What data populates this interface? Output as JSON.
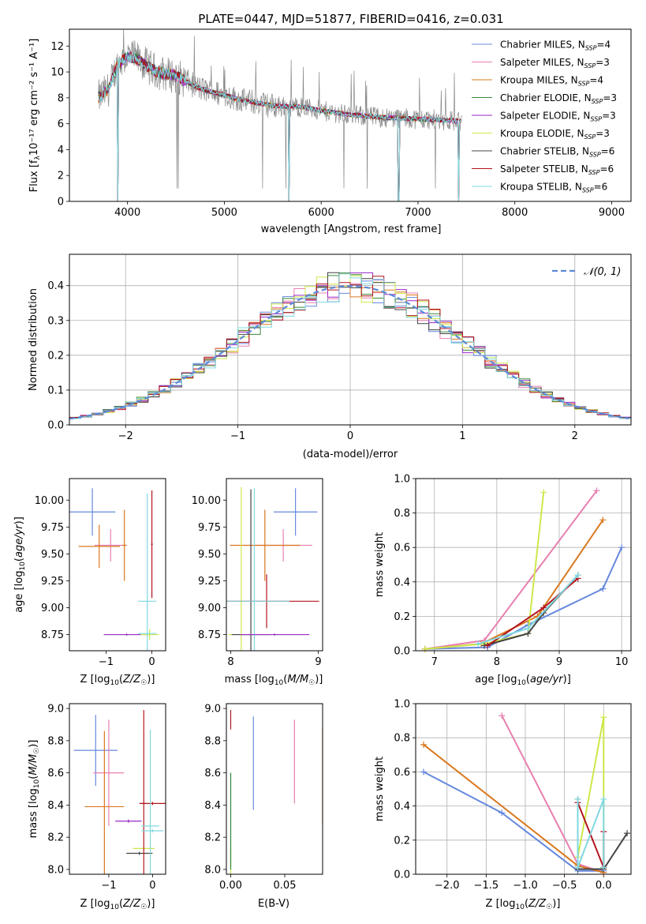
{
  "colors": {
    "Chabrier MILES": "#6688dd",
    "Salpeter MILES": "#e87fb0",
    "Kroupa MILES": "#d9781f",
    "Chabrier ELODIE": "#3a8a3a",
    "Salpeter ELODIE": "#9a28c8",
    "Kroupa ELODIE": "#cde84a",
    "Chabrier STELIB": "#444444",
    "Salpeter STELIB": "#b4141e",
    "Kroupa STELIB": "#80d8e0",
    "data": "#888888",
    "gauss": "#5c8ad6"
  },
  "chart_data": [
    {
      "id": "spectrum",
      "type": "line",
      "title": "PLATE=0447, MJD=51877, FIBERID=0416, z=0.031",
      "xlabel": "wavelength [Angstrom, rest frame]",
      "ylabel": "Flux [fλ10⁻¹⁷ erg cm⁻² s⁻¹ A⁻¹]",
      "xlim": [
        3400,
        9200
      ],
      "ylim": [
        0,
        13.3
      ],
      "xticks": [
        4000,
        5000,
        6000,
        7000,
        8000,
        9000
      ],
      "yticks": [
        0,
        2,
        4,
        6,
        8,
        10,
        12
      ],
      "legend_position": "top-right",
      "legend": [
        {
          "series": "Chabrier MILES",
          "label": "Chabrier MILES, N",
          "sub": "SSP",
          "suffix": "=4"
        },
        {
          "series": "Salpeter MILES",
          "label": "Salpeter MILES, N",
          "sub": "SSP",
          "suffix": "=3"
        },
        {
          "series": "Kroupa MILES",
          "label": "Kroupa MILES, N",
          "sub": "SSP",
          "suffix": "=4"
        },
        {
          "series": "Chabrier ELODIE",
          "label": "Chabrier ELODIE, N",
          "sub": "SSP",
          "suffix": "=3"
        },
        {
          "series": "Salpeter ELODIE",
          "label": "Salpeter ELODIE, N",
          "sub": "SSP",
          "suffix": "=3"
        },
        {
          "series": "Kroupa ELODIE",
          "label": "Kroupa ELODIE, N",
          "sub": "SSP",
          "suffix": "=3"
        },
        {
          "series": "Chabrier STELIB",
          "label": "Chabrier STELIB, N",
          "sub": "SSP",
          "suffix": "=6"
        },
        {
          "series": "Salpeter STELIB",
          "label": "Salpeter STELIB, N",
          "sub": "SSP",
          "suffix": "=6"
        },
        {
          "series": "Kroupa STELIB",
          "label": "Kroupa STELIB, N",
          "sub": "SSP",
          "suffix": "=6"
        }
      ],
      "continuum": [
        [
          3700,
          8.0
        ],
        [
          3800,
          8.6
        ],
        [
          3900,
          10.6
        ],
        [
          4000,
          11.2
        ],
        [
          4100,
          11.0
        ],
        [
          4300,
          10.0
        ],
        [
          4500,
          9.7
        ],
        [
          4750,
          8.7
        ],
        [
          5000,
          8.2
        ],
        [
          5200,
          7.8
        ],
        [
          5500,
          7.4
        ],
        [
          5800,
          7.3
        ],
        [
          6000,
          7.0
        ],
        [
          6300,
          6.7
        ],
        [
          6600,
          6.5
        ],
        [
          6900,
          6.4
        ],
        [
          7200,
          6.3
        ],
        [
          7450,
          6.2
        ]
      ],
      "model_dips": [
        {
          "x": 3900,
          "y": 0
        },
        {
          "x": 5670,
          "y": 0
        },
        {
          "x": 6800,
          "y": 0
        },
        {
          "x": 7420,
          "y": 0
        }
      ]
    },
    {
      "id": "residuals",
      "type": "histogram",
      "xlabel": "(data-model)/error",
      "ylabel": "Normed distribution",
      "xlim": [
        -2.5,
        2.5
      ],
      "ylim": [
        0,
        0.49
      ],
      "xticks": [
        -2,
        -1,
        0,
        1,
        2
      ],
      "yticks": [
        0,
        0.1,
        0.2,
        0.3,
        0.4
      ],
      "grid": true,
      "legend_position": "top-right",
      "legend": [
        {
          "label": "𝒩(0, 1)",
          "style": "dashed"
        }
      ],
      "bin_width": 0.1
    },
    {
      "id": "age_vs_Z",
      "type": "errorbar",
      "xlabel": "Z [log10(Z/Z☉)]",
      "ylabel": "age [log10(age/yr)]",
      "xlim": [
        -1.8,
        0.3
      ],
      "ylim": [
        8.6,
        10.2
      ],
      "xticks": [
        -1,
        0
      ],
      "yticks": [
        8.75,
        9.0,
        9.25,
        9.5,
        9.75,
        10.0
      ],
      "points": [
        {
          "series": "Chabrier MILES",
          "x": -1.3,
          "y": 9.89,
          "dx": 0.5,
          "dy": 0.22
        },
        {
          "series": "Salpeter MILES",
          "x": -0.9,
          "y": 9.58,
          "dx": 0.35,
          "dy": 0.15
        },
        {
          "series": "Kroupa MILES",
          "x": -1.15,
          "y": 9.57,
          "dx": 0.45,
          "dy": 0.2
        },
        {
          "series": "Kroupa MILES",
          "x": -0.6,
          "y": 9.58,
          "dx": 0.05,
          "dy": 0.33
        },
        {
          "series": "Salpeter ELODIE",
          "x": -0.55,
          "y": 8.75,
          "dx": 0.5,
          "dy": 0.01
        },
        {
          "series": "Kroupa ELODIE",
          "x": -0.05,
          "y": 8.75,
          "dx": 0.2,
          "dy": 0.05
        },
        {
          "series": "Salpeter STELIB",
          "x": 0.0,
          "y": 9.59,
          "dx": 0.02,
          "dy": 0.5
        },
        {
          "series": "Kroupa STELIB",
          "x": -0.1,
          "y": 9.06,
          "dx": 0.2,
          "dy": 1.0
        },
        {
          "series": "Kroupa STELIB",
          "x": -0.1,
          "y": 8.76,
          "dx": 0.2,
          "dy": 0.01
        }
      ]
    },
    {
      "id": "age_vs_mass",
      "type": "errorbar",
      "xlabel": "mass [log10(M/M☉)]",
      "ylabel": "",
      "xlim": [
        7.95,
        9.05
      ],
      "ylim": [
        8.6,
        10.2
      ],
      "xticks": [
        8,
        9
      ],
      "yticks": [
        8.75,
        9.0,
        9.25,
        9.5,
        9.75,
        10.0
      ],
      "points": [
        {
          "series": "Chabrier MILES",
          "x": 8.74,
          "y": 9.89,
          "dx": 0.25,
          "dy": 0.22
        },
        {
          "series": "Salpeter MILES",
          "x": 8.6,
          "y": 9.58,
          "dx": 0.33,
          "dy": 0.15
        },
        {
          "series": "Kroupa MILES",
          "x": 8.39,
          "y": 9.58,
          "dx": 0.4,
          "dy": 0.33
        },
        {
          "series": "Kroupa ELODIE",
          "x": 8.12,
          "y": 8.75,
          "dx": 0.15,
          "dy": 1.37
        },
        {
          "series": "Chabrier STELIB",
          "x": 8.23,
          "y": 8.75,
          "dx": 0.22,
          "dy": 1.35
        },
        {
          "series": "Salpeter STELIB",
          "x": 8.41,
          "y": 9.06,
          "dx": 0.6,
          "dy": 0.25
        },
        {
          "series": "Kroupa STELIB",
          "x": 8.27,
          "y": 9.06,
          "dx": 0.4,
          "dy": 1.05
        },
        {
          "series": "Salpeter ELODIE",
          "x": 8.5,
          "y": 8.75,
          "dx": 0.4,
          "dy": 0.01
        }
      ]
    },
    {
      "id": "weight_vs_age",
      "type": "line",
      "xlabel": "age  [log10(age/yr)]",
      "ylabel": "mass weight",
      "xlim": [
        6.7,
        10.15
      ],
      "ylim": [
        0,
        1.0
      ],
      "xticks": [
        7,
        8,
        9,
        10
      ],
      "yticks": [
        0.0,
        0.2,
        0.4,
        0.6,
        0.8,
        1.0
      ],
      "grid": true,
      "series": [
        {
          "name": "Chabrier MILES",
          "x": [
            6.85,
            7.85,
            8.5,
            9.7,
            10.0
          ],
          "y": [
            0.01,
            0.02,
            0.15,
            0.36,
            0.6
          ]
        },
        {
          "name": "Salpeter MILES",
          "x": [
            6.85,
            7.8,
            9.6
          ],
          "y": [
            0.01,
            0.06,
            0.93
          ]
        },
        {
          "name": "Kroupa MILES",
          "x": [
            6.85,
            7.75,
            8.65,
            9.7
          ],
          "y": [
            0.01,
            0.04,
            0.2,
            0.76
          ]
        },
        {
          "name": "Kroupa ELODIE",
          "x": [
            6.85,
            7.8,
            8.5,
            8.75
          ],
          "y": [
            0.01,
            0.04,
            0.1,
            0.92
          ]
        },
        {
          "name": "Chabrier STELIB",
          "x": [
            7.8,
            8.5,
            8.75,
            9.3
          ],
          "y": [
            0.03,
            0.1,
            0.22,
            0.44
          ]
        },
        {
          "name": "Salpeter STELIB",
          "x": [
            7.85,
            8.75,
            9.3
          ],
          "y": [
            0.03,
            0.25,
            0.42
          ]
        },
        {
          "name": "Kroupa STELIB",
          "x": [
            7.7,
            8.5,
            9.3
          ],
          "y": [
            0.04,
            0.13,
            0.44
          ]
        }
      ]
    },
    {
      "id": "mass_vs_Z",
      "type": "errorbar",
      "xlabel": "Z [log10(Z/Z☉)]",
      "ylabel": "mass [log10(M/M☉)]",
      "xlim": [
        -1.9,
        0.3
      ],
      "ylim": [
        7.97,
        9.03
      ],
      "xticks": [
        -1,
        0
      ],
      "yticks": [
        8.0,
        8.2,
        8.4,
        8.6,
        8.8,
        9.0
      ],
      "points": [
        {
          "series": "Chabrier MILES",
          "x": -1.3,
          "y": 8.74,
          "dx": 0.5,
          "dy": 0.22
        },
        {
          "series": "Salpeter MILES",
          "x": -1.0,
          "y": 8.6,
          "dx": 0.35,
          "dy": 0.33
        },
        {
          "series": "Kroupa MILES",
          "x": -1.1,
          "y": 8.39,
          "dx": 0.45,
          "dy": 0.47
        },
        {
          "series": "Salpeter ELODIE",
          "x": -0.55,
          "y": 8.3,
          "dx": 0.3,
          "dy": 0.01
        },
        {
          "series": "Kroupa ELODIE",
          "x": -0.2,
          "y": 8.13,
          "dx": 0.25,
          "dy": 0.01
        },
        {
          "series": "Chabrier STELIB",
          "x": -0.3,
          "y": 8.1,
          "dx": 0.3,
          "dy": 0.01
        },
        {
          "series": "Salpeter STELIB",
          "x": -0.2,
          "y": 8.41,
          "dx": 0.05,
          "dy": 0.58
        },
        {
          "series": "Salpeter STELIB",
          "x": 0.0,
          "y": 8.41,
          "dx": 0.3,
          "dy": 0.01
        },
        {
          "series": "Kroupa STELIB",
          "x": -0.05,
          "y": 8.27,
          "dx": 0.2,
          "dy": 0.6
        },
        {
          "series": "Kroupa STELIB",
          "x": 0.0,
          "y": 8.24,
          "dx": 0.25,
          "dy": 0.01
        }
      ]
    },
    {
      "id": "mass_vs_ebv",
      "type": "errorbar",
      "xlabel": "E(B-V)",
      "ylabel": "",
      "xlim": [
        -0.004,
        0.085
      ],
      "ylim": [
        7.97,
        9.03
      ],
      "xticks": [
        0.0,
        0.05
      ],
      "yticks": [
        8.0,
        8.2,
        8.4,
        8.6,
        8.8,
        9.0
      ],
      "points": [
        {
          "series": "Chabrier MILES",
          "x": 0.021,
          "y": 8.66,
          "dx": 0,
          "dy": 0.29
        },
        {
          "series": "Salpeter MILES",
          "x": 0.059,
          "y": 8.67,
          "dx": 0,
          "dy": 0.26
        },
        {
          "series": "Kroupa MILES",
          "x": 0.085,
          "y": 8.58,
          "dx": 0,
          "dy": 0.29
        },
        {
          "series": "Salpeter STELIB",
          "x": 0.0,
          "y": 8.93,
          "dx": 0,
          "dy": 0.06
        },
        {
          "series": "Kroupa STELIB",
          "x": 0.0,
          "y": 8.2,
          "dx": 0,
          "dy": 0.4
        },
        {
          "series": "Kroupa ELODIE",
          "x": 0.0,
          "y": 8.05,
          "dx": 0,
          "dy": 0.1
        },
        {
          "series": "Chabrier ELODIE",
          "x": 0.0,
          "y": 8.3,
          "dx": 0,
          "dy": 0.3
        }
      ]
    },
    {
      "id": "weight_vs_Z",
      "type": "line",
      "xlabel": "Z [log10(Z/Z☉)]",
      "ylabel": "mass weight",
      "xlim": [
        -2.4,
        0.35
      ],
      "ylim": [
        0,
        1.0
      ],
      "xticks": [
        -2.0,
        -1.5,
        -1.0,
        -0.5,
        0.0
      ],
      "yticks": [
        0.0,
        0.2,
        0.4,
        0.6,
        0.8,
        1.0
      ],
      "grid": true,
      "series": [
        {
          "name": "Chabrier MILES",
          "x": [
            -2.3,
            -1.3,
            -0.33,
            0.0
          ],
          "y": [
            0.6,
            0.36,
            0.02,
            0.02
          ]
        },
        {
          "name": "Salpeter MILES",
          "x": [
            -1.3,
            -0.33,
            0.0
          ],
          "y": [
            0.93,
            0.06,
            0.01
          ]
        },
        {
          "name": "Kroupa MILES",
          "x": [
            -2.3,
            -0.33,
            0.0
          ],
          "y": [
            0.76,
            0.05,
            0.01
          ]
        },
        {
          "name": "Kroupa ELODIE",
          "x": [
            -0.33,
            0.0,
            0.0
          ],
          "y": [
            0.1,
            0.92,
            0.04
          ]
        },
        {
          "name": "Chabrier STELIB",
          "x": [
            -0.33,
            -0.33,
            0.0,
            0.3
          ],
          "y": [
            0.44,
            0.03,
            0.03,
            0.24
          ]
        },
        {
          "name": "Salpeter STELIB",
          "x": [
            -0.33,
            0.0,
            0.0
          ],
          "y": [
            0.42,
            0.04,
            0.25
          ]
        },
        {
          "name": "Kroupa STELIB",
          "x": [
            -0.33,
            -0.33,
            0.0,
            0.0
          ],
          "y": [
            0.44,
            0.04,
            0.44,
            0.04
          ]
        }
      ]
    }
  ]
}
